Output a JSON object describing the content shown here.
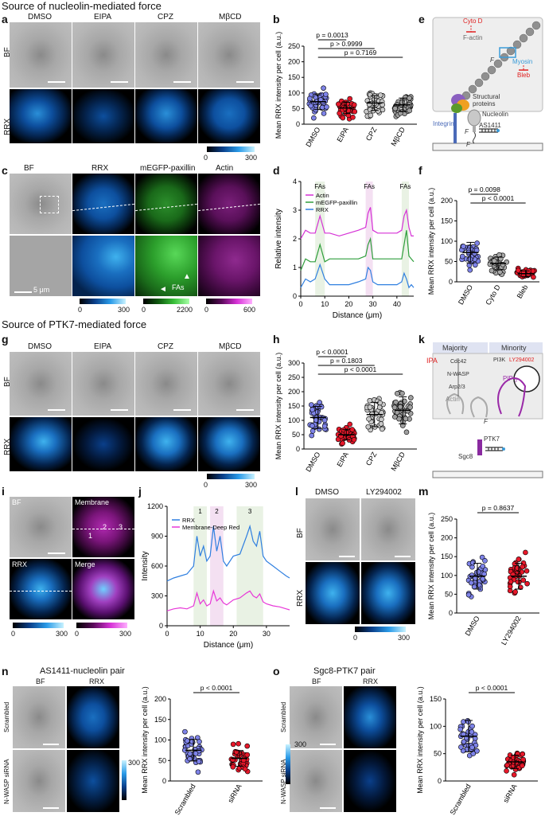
{
  "sections": {
    "nucleolin": "Source of nucleolin-mediated force",
    "ptk7": "Source of PTK7-mediated force"
  },
  "panels": {
    "a": "a",
    "b": "b",
    "c": "c",
    "d": "d",
    "e": "e",
    "f": "f",
    "g": "g",
    "h": "h",
    "i": "i",
    "j": "j",
    "k": "k",
    "l": "l",
    "m": "m",
    "n": "n",
    "o": "o"
  },
  "row_labels": {
    "bf": "BF",
    "rrx": "RRX",
    "scrambled": "Scrambled",
    "nwasp": "N-WASP siRNA"
  },
  "conditions": [
    "DMSO",
    "EIPA",
    "CPZ",
    "MβCD"
  ],
  "panel_a": {
    "colorbar_min": "0",
    "colorbar_max": "300"
  },
  "panel_c": {
    "headers": [
      "BF",
      "RRX",
      "mEGFP-paxillin",
      "Actin"
    ],
    "scale": "5 μm",
    "fas": "FAs",
    "cbar_rrx": [
      "0",
      "300"
    ],
    "cbar_pax": [
      "0",
      "2200"
    ],
    "cbar_actin": [
      "0",
      "600"
    ]
  },
  "panel_g": {
    "colorbar_min": "0",
    "colorbar_max": "300"
  },
  "panel_i": {
    "labels": [
      "BF",
      "Membrane",
      "RRX",
      "Merge"
    ],
    "numbers": [
      "1",
      "2",
      "3"
    ],
    "cbar1": [
      "0",
      "300"
    ],
    "cbar2": [
      "0",
      "300"
    ]
  },
  "panel_l": {
    "headers": [
      "DMSO",
      "LY294002"
    ],
    "cbar": [
      "0",
      "300"
    ]
  },
  "panel_n": {
    "title": "AS1411-nucleolin pair",
    "headers": [
      "BF",
      "RRX"
    ],
    "cbar_max": "300"
  },
  "panel_o": {
    "title": "Sgc8-PTK7 pair",
    "headers": [
      "BF",
      "RRX"
    ],
    "cbar_max": "300"
  },
  "panel_e": {
    "labels": {
      "cytod": "Cyto D",
      "factin": "F-actin",
      "myosin": "Myosin",
      "bleb": "Bleb",
      "f": "F",
      "structural": "Structural",
      "proteins": "proteins",
      "nucleolin": "Nucleolin",
      "integrin": "Integrin",
      "as1411": "AS1411"
    }
  },
  "panel_k": {
    "labels": {
      "majority": "Majority",
      "minority": "Minority",
      "eipa": "EIPA",
      "pi3k": "PI3K",
      "ly": "LY294002",
      "pip3": "PIP",
      "pip3sub": "3",
      "cdc42": "Cdc42",
      "nwasp": "N-WASP",
      "arp": "Arp2/3",
      "actin": "Actin",
      "f": "F",
      "ptk7": "PTK7",
      "sgc8": "Sgc8"
    }
  },
  "chart_data": [
    {
      "panel": "b",
      "type": "scatter",
      "ylabel": "Mean RRX intensity per cell (a.u.)",
      "categories": [
        "DMSO",
        "EIPA",
        "CPZ",
        "MβCD"
      ],
      "ylim": [
        0,
        250
      ],
      "yticks": [
        0,
        50,
        100,
        150,
        200,
        250
      ],
      "means": [
        72,
        52,
        68,
        62
      ],
      "colors": [
        "#7e83e8",
        "#e8182a",
        "#c8c8c8",
        "#a0a0a0"
      ],
      "pvalues": [
        {
          "from": 0,
          "to": 1,
          "text": "p = 0.0013"
        },
        {
          "from": 0,
          "to": 2,
          "text": "p > 0.9999"
        },
        {
          "from": 0,
          "to": 3,
          "text": "p = 0.7169"
        }
      ]
    },
    {
      "panel": "f",
      "type": "scatter",
      "ylabel": "Mean RRX intensity per cell (a.u.)",
      "categories": [
        "DMSO",
        "Cyto D",
        "Bleb"
      ],
      "ylim": [
        0,
        200
      ],
      "yticks": [
        0,
        50,
        100,
        150,
        200
      ],
      "means": [
        72,
        45,
        20
      ],
      "colors": [
        "#7e83e8",
        "#a8a8a8",
        "#e8182a"
      ],
      "pvalues": [
        {
          "from": 0,
          "to": 1,
          "text": "p = 0.0098"
        },
        {
          "from": 0,
          "to": 2,
          "text": "p < 0.0001"
        }
      ]
    },
    {
      "panel": "h",
      "type": "scatter",
      "ylabel": "Mean RRX intensity per cell (a.u.)",
      "categories": [
        "DMSO",
        "EIPA",
        "CPZ",
        "MβCD"
      ],
      "ylim": [
        0,
        300
      ],
      "yticks": [
        0,
        50,
        100,
        150,
        200,
        250,
        300
      ],
      "means": [
        110,
        50,
        120,
        135
      ],
      "colors": [
        "#7e83e8",
        "#e8182a",
        "#c8c8c8",
        "#a0a0a0"
      ],
      "pvalues": [
        {
          "from": 0,
          "to": 1,
          "text": "p < 0.0001"
        },
        {
          "from": 0,
          "to": 2,
          "text": "p = 0.1803"
        },
        {
          "from": 0,
          "to": 3,
          "text": "p < 0.0001"
        }
      ]
    },
    {
      "panel": "m",
      "type": "scatter",
      "ylabel": "Mean RRX intensity per cell (a.u.)",
      "categories": [
        "DMSO",
        "LY294002"
      ],
      "ylim": [
        0,
        250
      ],
      "yticks": [
        0,
        50,
        100,
        150,
        200,
        250
      ],
      "means": [
        98,
        98
      ],
      "colors": [
        "#7e83e8",
        "#e8182a"
      ],
      "pvalues": [
        {
          "from": 0,
          "to": 1,
          "text": "p = 0.8637"
        }
      ]
    },
    {
      "panel": "n",
      "type": "scatter",
      "ylabel": "Mean RRX intensity per cell (a.u.)",
      "categories": [
        "Scrambled",
        "siRNA"
      ],
      "ylim": [
        0,
        200
      ],
      "yticks": [
        0,
        50,
        100,
        150,
        200
      ],
      "means": [
        75,
        55
      ],
      "colors": [
        "#7e83e8",
        "#e8182a"
      ],
      "pvalues": [
        {
          "from": 0,
          "to": 1,
          "text": "p < 0.0001"
        }
      ]
    },
    {
      "panel": "o",
      "type": "scatter",
      "ylabel": "Mean RRX intensity per cell (a.u.)",
      "categories": [
        "Scrambled",
        "siRNA"
      ],
      "ylim": [
        0,
        150
      ],
      "yticks": [
        0,
        50,
        100,
        150
      ],
      "means": [
        82,
        35
      ],
      "colors": [
        "#7e83e8",
        "#e8182a"
      ],
      "pvalues": [
        {
          "from": 0,
          "to": 1,
          "text": "p < 0.0001"
        }
      ]
    },
    {
      "panel": "d",
      "type": "line",
      "xlabel": "Distance (μm)",
      "ylabel": "Relative intensity",
      "xlim": [
        0,
        47
      ],
      "ylim": [
        0,
        4
      ],
      "xticks": [
        0,
        10,
        20,
        30,
        40
      ],
      "yticks": [
        0,
        1,
        2,
        3,
        4
      ],
      "legend": [
        "Actin",
        "mEGFP-paxillin",
        "RRX"
      ],
      "legend_colors": [
        "#d631d6",
        "#2e9e3b",
        "#2f7fe0"
      ],
      "annotation": "FAs",
      "shaded_x": [
        [
          6,
          10
        ],
        [
          27,
          30
        ],
        [
          42,
          45
        ]
      ],
      "series": [
        {
          "name": "Actin",
          "x": [
            0,
            2,
            4,
            6,
            8,
            10,
            12,
            16,
            20,
            24,
            27,
            28,
            29,
            30,
            32,
            36,
            40,
            42,
            43,
            44,
            45,
            46,
            47
          ],
          "y": [
            2.0,
            2.3,
            2.2,
            2.2,
            2.8,
            2.2,
            2.2,
            2.1,
            2.2,
            2.3,
            2.4,
            2.9,
            3.1,
            2.3,
            2.2,
            2.2,
            2.2,
            2.3,
            2.8,
            3.0,
            2.4,
            2.1,
            2.1
          ]
        },
        {
          "name": "mEGFP-paxillin",
          "x": [
            0,
            2,
            4,
            6,
            8,
            10,
            12,
            16,
            20,
            24,
            27,
            28,
            29,
            30,
            32,
            36,
            40,
            42,
            43,
            44,
            45,
            46,
            47
          ],
          "y": [
            0.9,
            1.3,
            1.2,
            1.2,
            1.8,
            1.2,
            1.3,
            1.3,
            1.3,
            1.3,
            1.4,
            1.8,
            2.0,
            1.3,
            1.3,
            1.3,
            1.3,
            1.3,
            1.8,
            2.3,
            1.4,
            1.3,
            1.2
          ]
        },
        {
          "name": "RRX",
          "x": [
            0,
            2,
            4,
            6,
            8,
            10,
            12,
            16,
            20,
            24,
            27,
            28,
            29,
            30,
            32,
            36,
            40,
            42,
            43,
            44,
            45,
            46,
            47
          ],
          "y": [
            0.3,
            0.6,
            0.5,
            0.6,
            1.1,
            0.6,
            0.4,
            0.4,
            0.4,
            0.5,
            0.6,
            1.0,
            0.9,
            0.5,
            0.4,
            0.4,
            0.4,
            0.5,
            0.8,
            0.6,
            0.3,
            0.4,
            0.3
          ]
        }
      ]
    },
    {
      "panel": "j",
      "type": "line",
      "xlabel": "Distance (μm)",
      "ylabel": "Intensity",
      "xlim": [
        0,
        37
      ],
      "ylim": [
        0,
        1200
      ],
      "xticks": [
        0,
        10,
        20,
        30
      ],
      "yticks": [
        0,
        300,
        600,
        900,
        1200
      ],
      "legend": [
        "RRX",
        "Membrane-Deep Red"
      ],
      "legend_colors": [
        "#2f7fe0",
        "#e838d8"
      ],
      "shaded_x": [
        [
          8,
          12
        ],
        [
          13,
          17
        ],
        [
          21,
          29
        ]
      ],
      "shaded_labels": [
        "1",
        "2",
        "3"
      ],
      "series": [
        {
          "name": "RRX",
          "x": [
            0,
            2,
            4,
            6,
            8,
            9,
            10,
            11,
            12,
            13,
            14,
            15,
            16,
            17,
            18,
            20,
            22,
            24,
            25,
            26,
            27,
            28,
            29,
            30,
            32,
            34,
            36,
            37
          ],
          "y": [
            450,
            480,
            500,
            520,
            600,
            900,
            700,
            800,
            650,
            700,
            1000,
            750,
            900,
            650,
            600,
            700,
            720,
            900,
            1000,
            850,
            800,
            950,
            700,
            650,
            600,
            550,
            500,
            480
          ]
        },
        {
          "name": "Membrane-Deep Red",
          "x": [
            0,
            2,
            4,
            6,
            8,
            9,
            10,
            11,
            12,
            13,
            14,
            15,
            16,
            17,
            18,
            20,
            22,
            24,
            25,
            26,
            27,
            28,
            29,
            30,
            32,
            34,
            36,
            37
          ],
          "y": [
            150,
            170,
            180,
            170,
            200,
            330,
            220,
            260,
            200,
            220,
            350,
            250,
            280,
            230,
            210,
            260,
            280,
            330,
            350,
            300,
            280,
            320,
            240,
            220,
            200,
            190,
            170,
            160
          ]
        }
      ]
    }
  ]
}
